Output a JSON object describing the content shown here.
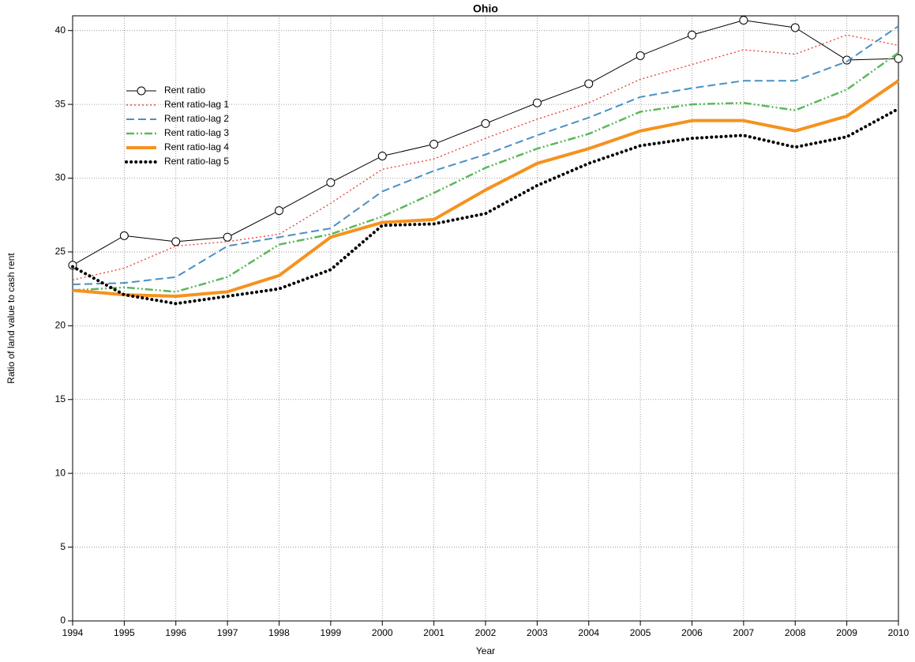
{
  "chart_data": {
    "type": "line",
    "title": "Ohio",
    "x_label": "Year",
    "y_label": "Ratio of land value to cash rent",
    "x": [
      1994,
      1995,
      1996,
      1997,
      1998,
      1999,
      2000,
      2001,
      2002,
      2003,
      2004,
      2005,
      2006,
      2007,
      2008,
      2009,
      2010
    ],
    "xlim": [
      1994,
      2010
    ],
    "xticks": [
      1994,
      1995,
      1996,
      1997,
      1998,
      1999,
      2000,
      2001,
      2002,
      2003,
      2004,
      2005,
      2006,
      2007,
      2008,
      2009,
      2010
    ],
    "ylim": [
      0,
      41
    ],
    "yticks": [
      0,
      5,
      10,
      15,
      20,
      25,
      30,
      35,
      40
    ],
    "grid": true,
    "legend": "upper left",
    "series": [
      {
        "name": "Rent ratio",
        "color": "#000000",
        "line_style": "solid",
        "line_width": 1,
        "marker": "open-circle",
        "values": [
          24.1,
          26.1,
          25.7,
          26.0,
          27.8,
          29.7,
          31.5,
          32.3,
          33.7,
          35.1,
          36.4,
          38.3,
          39.7,
          40.7,
          40.2,
          38.0,
          38.1
        ]
      },
      {
        "name": "Rent ratio-lag 1",
        "color": "#e8392b",
        "line_style": "dotted",
        "line_width": 1.3,
        "values": [
          23.1,
          23.9,
          25.4,
          25.7,
          26.2,
          28.3,
          30.6,
          31.3,
          32.7,
          34.0,
          35.1,
          36.7,
          37.7,
          38.7,
          38.4,
          39.7,
          39.0
        ]
      },
      {
        "name": "Rent ratio-lag 2",
        "color": "#4a90c4",
        "line_style": "dashed",
        "line_width": 2,
        "values": [
          22.8,
          22.9,
          23.3,
          25.4,
          26.0,
          26.6,
          29.1,
          30.5,
          31.6,
          32.9,
          34.1,
          35.5,
          36.1,
          36.6,
          36.6,
          37.9,
          40.3
        ]
      },
      {
        "name": "Rent ratio-lag 3",
        "color": "#5cb85c",
        "line_style": "dashdot",
        "line_width": 2.5,
        "values": [
          22.4,
          22.6,
          22.3,
          23.3,
          25.5,
          26.2,
          27.4,
          29.0,
          30.7,
          32.0,
          33.0,
          34.5,
          35.0,
          35.1,
          34.6,
          36.0,
          38.5
        ]
      },
      {
        "name": "Rent ratio-lag 4",
        "color": "#f5921e",
        "line_style": "solid",
        "line_width": 4,
        "values": [
          22.4,
          22.1,
          22.0,
          22.3,
          23.4,
          26.0,
          27.0,
          27.2,
          29.2,
          31.0,
          32.0,
          33.2,
          33.9,
          33.9,
          33.2,
          34.2,
          36.6
        ]
      },
      {
        "name": "Rent ratio-lag 5",
        "color": "#000000",
        "line_style": "round-dotted",
        "line_width": 4,
        "values": [
          24.0,
          22.1,
          21.5,
          22.0,
          22.5,
          23.8,
          26.8,
          26.9,
          27.6,
          29.5,
          31.0,
          32.2,
          32.7,
          32.9,
          32.1,
          32.8,
          34.7
        ]
      }
    ]
  }
}
